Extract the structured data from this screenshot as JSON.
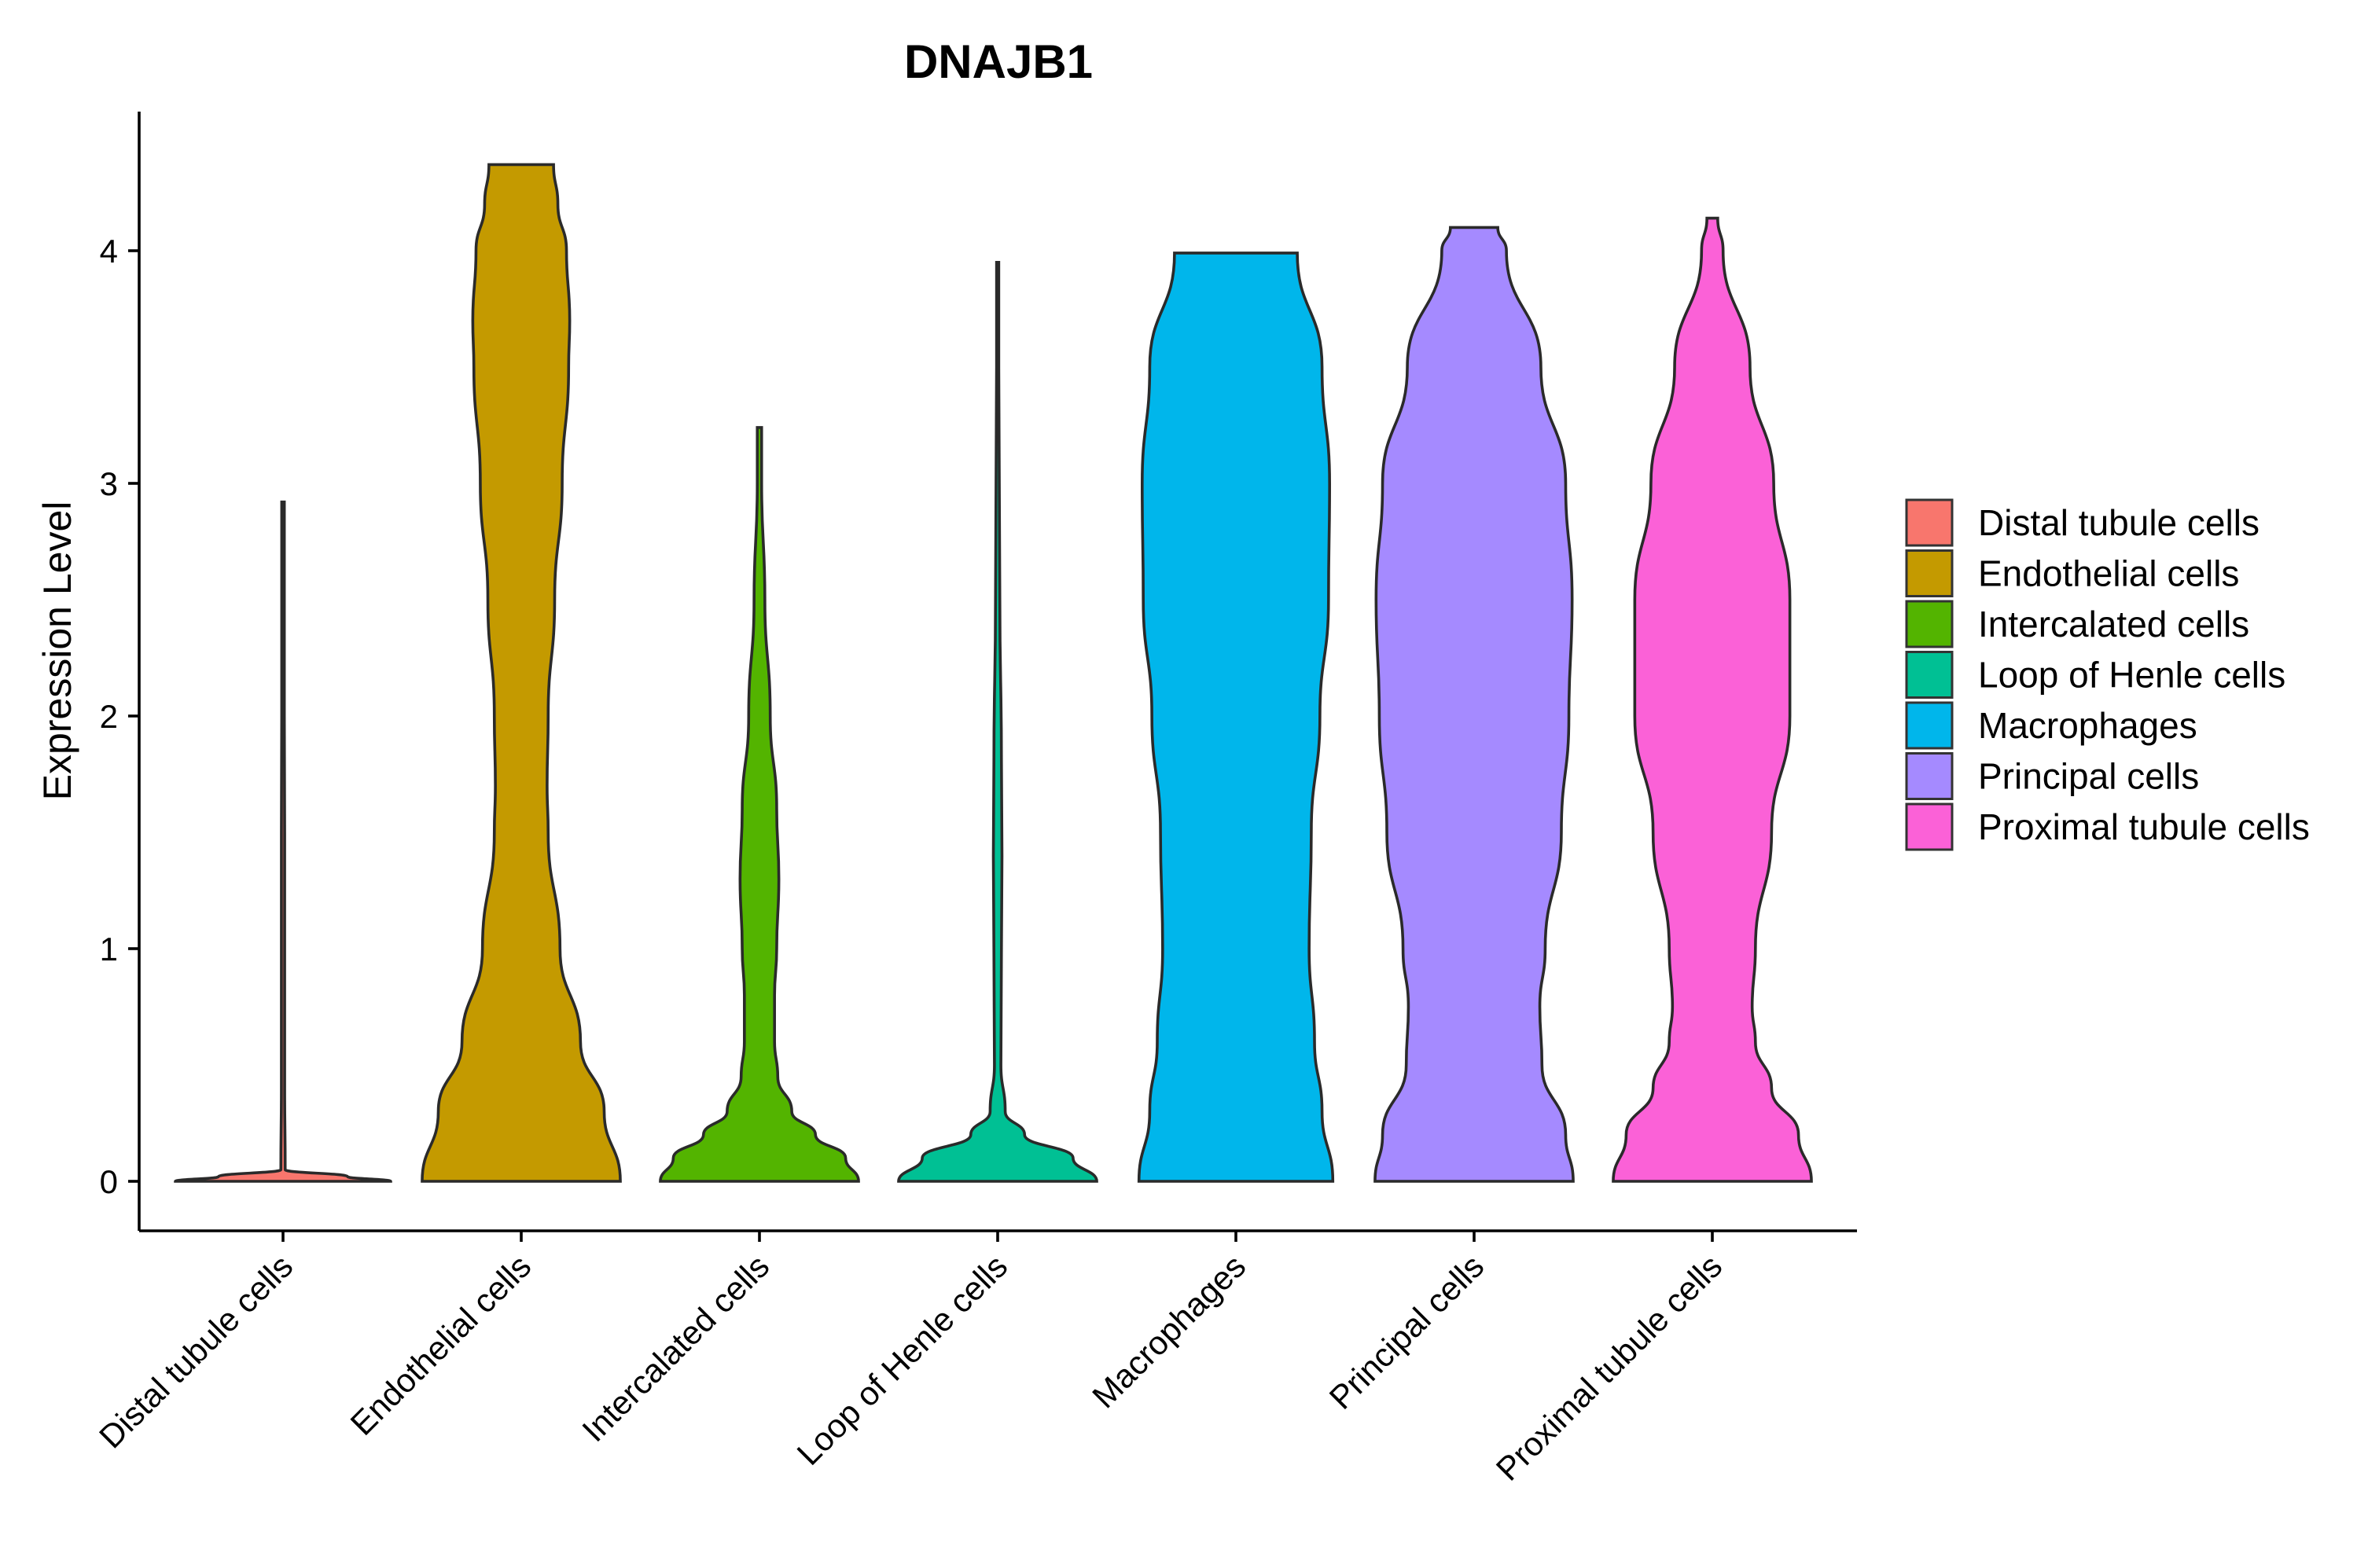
{
  "chart_data": {
    "type": "violin",
    "title": "DNAJB1",
    "xlabel": "",
    "ylabel": "Expression Level",
    "ylim": [
      -0.21,
      4.6
    ],
    "yticks": [
      0,
      1,
      2,
      3,
      4
    ],
    "grid": false,
    "legend_position": "right",
    "categories": [
      "Distal tubule cells",
      "Endothelial cells",
      "Intercalated cells",
      "Loop of Henle cells",
      "Macrophages",
      "Principal cells",
      "Proximal tubule cells"
    ],
    "colors": [
      "#F8766D",
      "#C49A00",
      "#53B400",
      "#00C094",
      "#00B6EB",
      "#A58AFF",
      "#FB61D7"
    ],
    "series": [
      {
        "name": "Distal tubule cells",
        "max": 2.92,
        "density": [
          [
            0,
            1.0
          ],
          [
            0.02,
            0.6
          ],
          [
            0.05,
            0.02
          ],
          [
            0.4,
            0.015
          ],
          [
            1.0,
            0.015
          ],
          [
            1.5,
            0.015
          ],
          [
            2.0,
            0.012
          ],
          [
            2.5,
            0.012
          ],
          [
            2.92,
            0.012
          ]
        ]
      },
      {
        "name": "Endothelial cells",
        "max": 4.37,
        "density": [
          [
            0,
            0.92
          ],
          [
            0.3,
            0.77
          ],
          [
            0.6,
            0.55
          ],
          [
            1.0,
            0.36
          ],
          [
            1.5,
            0.25
          ],
          [
            1.7,
            0.24
          ],
          [
            2.0,
            0.25
          ],
          [
            2.5,
            0.31
          ],
          [
            3.0,
            0.38
          ],
          [
            3.5,
            0.44
          ],
          [
            3.7,
            0.45
          ],
          [
            4.0,
            0.42
          ],
          [
            4.2,
            0.34
          ],
          [
            4.37,
            0.3
          ]
        ]
      },
      {
        "name": "Intercalated cells",
        "max": 3.24,
        "density": [
          [
            0,
            0.92
          ],
          [
            0.1,
            0.8
          ],
          [
            0.2,
            0.52
          ],
          [
            0.3,
            0.3
          ],
          [
            0.45,
            0.17
          ],
          [
            0.6,
            0.14
          ],
          [
            0.8,
            0.14
          ],
          [
            1.0,
            0.16
          ],
          [
            1.3,
            0.18
          ],
          [
            1.6,
            0.16
          ],
          [
            2.0,
            0.1
          ],
          [
            2.5,
            0.05
          ],
          [
            3.0,
            0.02
          ],
          [
            3.24,
            0.02
          ]
        ]
      },
      {
        "name": "Loop of Henle cells",
        "max": 3.95,
        "density": [
          [
            0,
            0.92
          ],
          [
            0.1,
            0.7
          ],
          [
            0.2,
            0.25
          ],
          [
            0.3,
            0.07
          ],
          [
            0.5,
            0.03
          ],
          [
            1.0,
            0.035
          ],
          [
            1.4,
            0.04
          ],
          [
            1.8,
            0.035
          ],
          [
            2.5,
            0.02
          ],
          [
            3.5,
            0.01
          ],
          [
            3.95,
            0.01
          ]
        ]
      },
      {
        "name": "Macrophages",
        "max": 3.99,
        "density": [
          [
            0,
            0.9
          ],
          [
            0.3,
            0.8
          ],
          [
            0.6,
            0.73
          ],
          [
            1.0,
            0.68
          ],
          [
            1.5,
            0.7
          ],
          [
            2.0,
            0.78
          ],
          [
            2.5,
            0.86
          ],
          [
            3.0,
            0.87
          ],
          [
            3.5,
            0.8
          ],
          [
            3.99,
            0.57
          ]
        ]
      },
      {
        "name": "Principal cells",
        "max": 4.1,
        "density": [
          [
            0,
            0.92
          ],
          [
            0.2,
            0.85
          ],
          [
            0.5,
            0.63
          ],
          [
            0.75,
            0.61
          ],
          [
            1.0,
            0.66
          ],
          [
            1.5,
            0.81
          ],
          [
            2.0,
            0.88
          ],
          [
            2.5,
            0.91
          ],
          [
            3.0,
            0.85
          ],
          [
            3.5,
            0.62
          ],
          [
            4.0,
            0.3
          ],
          [
            4.1,
            0.22
          ]
        ]
      },
      {
        "name": "Proximal tubule cells",
        "max": 4.14,
        "density": [
          [
            0,
            0.92
          ],
          [
            0.2,
            0.8
          ],
          [
            0.4,
            0.55
          ],
          [
            0.6,
            0.4
          ],
          [
            0.75,
            0.37
          ],
          [
            1.0,
            0.4
          ],
          [
            1.5,
            0.55
          ],
          [
            2.0,
            0.72
          ],
          [
            2.5,
            0.72
          ],
          [
            3.0,
            0.57
          ],
          [
            3.5,
            0.35
          ],
          [
            4.0,
            0.1
          ],
          [
            4.14,
            0.05
          ]
        ]
      }
    ]
  }
}
